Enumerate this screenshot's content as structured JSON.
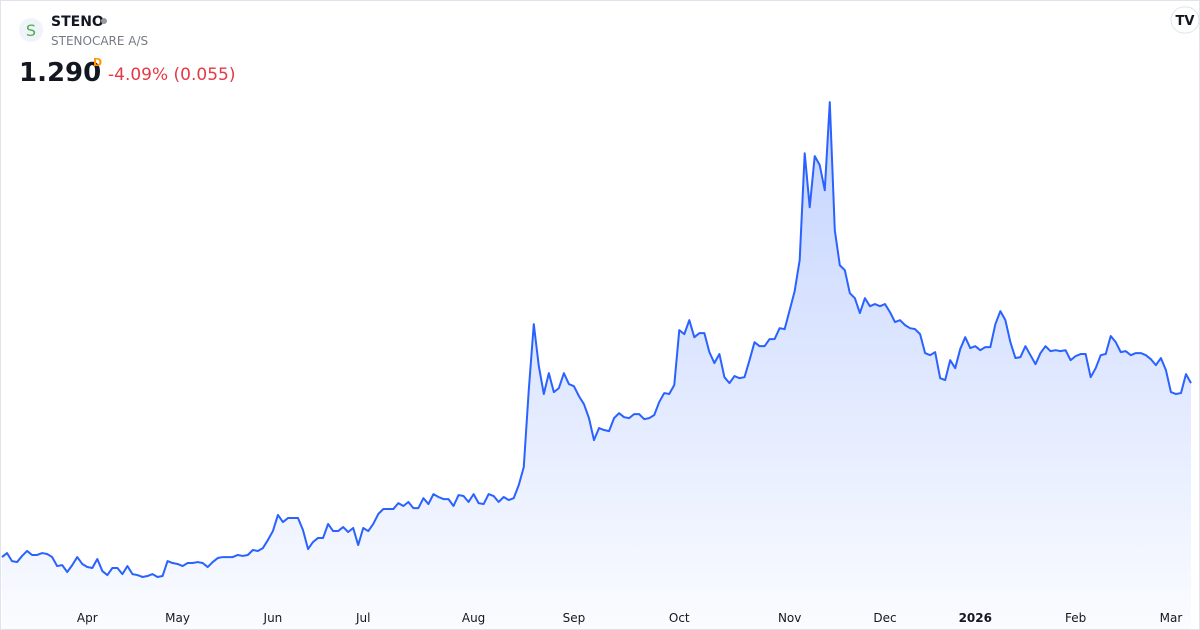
{
  "chart_data": {
    "type": "area",
    "symbol": "STENO",
    "name": "STENOCARE A/S",
    "price": "1.290",
    "interval": "D",
    "change": "-4.09% (0.055)",
    "color": "#2962ff",
    "values": [
      0.381,
      0.402,
      0.36,
      0.355,
      0.387,
      0.413,
      0.392,
      0.392,
      0.402,
      0.397,
      0.381,
      0.334,
      0.339,
      0.303,
      0.339,
      0.381,
      0.345,
      0.329,
      0.324,
      0.371,
      0.308,
      0.287,
      0.324,
      0.324,
      0.292,
      0.334,
      0.292,
      0.287,
      0.277,
      0.282,
      0.292,
      0.277,
      0.282,
      0.36,
      0.35,
      0.345,
      0.334,
      0.35,
      0.35,
      0.355,
      0.35,
      0.329,
      0.355,
      0.376,
      0.381,
      0.381,
      0.381,
      0.392,
      0.387,
      0.392,
      0.418,
      0.413,
      0.428,
      0.47,
      0.517,
      0.601,
      0.564,
      0.585,
      0.585,
      0.585,
      0.522,
      0.423,
      0.46,
      0.481,
      0.481,
      0.554,
      0.517,
      0.517,
      0.538,
      0.512,
      0.533,
      0.444,
      0.533,
      0.517,
      0.554,
      0.606,
      0.632,
      0.632,
      0.632,
      0.663,
      0.648,
      0.669,
      0.637,
      0.637,
      0.689,
      0.658,
      0.71,
      0.695,
      0.684,
      0.684,
      0.648,
      0.705,
      0.7,
      0.669,
      0.71,
      0.663,
      0.658,
      0.71,
      0.7,
      0.669,
      0.695,
      0.679,
      0.689,
      0.757,
      0.851,
      1.254,
      1.598,
      1.379,
      1.233,
      1.342,
      1.243,
      1.264,
      1.342,
      1.285,
      1.274,
      1.222,
      1.18,
      1.107,
      0.992,
      1.055,
      1.045,
      1.039,
      1.107,
      1.133,
      1.112,
      1.107,
      1.128,
      1.128,
      1.102,
      1.107,
      1.123,
      1.191,
      1.238,
      1.233,
      1.28,
      1.567,
      1.546,
      1.619,
      1.53,
      1.551,
      1.551,
      1.452,
      1.395,
      1.442,
      1.321,
      1.29,
      1.327,
      1.316,
      1.321,
      1.41,
      1.504,
      1.483,
      1.483,
      1.52,
      1.52,
      1.577,
      1.572,
      1.671,
      1.771,
      1.933,
      2.491,
      2.209,
      2.476,
      2.429,
      2.298,
      2.758,
      2.089,
      1.906,
      1.88,
      1.76,
      1.734,
      1.656,
      1.734,
      1.692,
      1.703,
      1.692,
      1.703,
      1.661,
      1.609,
      1.619,
      1.593,
      1.577,
      1.572,
      1.546,
      1.447,
      1.436,
      1.452,
      1.316,
      1.306,
      1.41,
      1.368,
      1.468,
      1.53,
      1.473,
      1.483,
      1.462,
      1.478,
      1.478,
      1.598,
      1.666,
      1.619,
      1.504,
      1.421,
      1.426,
      1.483,
      1.436,
      1.389,
      1.447,
      1.483,
      1.457,
      1.462,
      1.457,
      1.462,
      1.41,
      1.431,
      1.442,
      1.442,
      1.321,
      1.368,
      1.436,
      1.442,
      1.536,
      1.504,
      1.452,
      1.457,
      1.436,
      1.447,
      1.447,
      1.436,
      1.415,
      1.384,
      1.421,
      1.358,
      1.243,
      1.233,
      1.238,
      1.337,
      1.29
    ],
    "xlim": [
      0,
      237
    ],
    "xticks": [
      {
        "value": 17,
        "label": "Apr"
      },
      {
        "value": 35,
        "label": "May"
      },
      {
        "value": 54,
        "label": "Jun"
      },
      {
        "value": 72,
        "label": "Jul"
      },
      {
        "value": 94,
        "label": "Aug"
      },
      {
        "value": 114,
        "label": "Sep"
      },
      {
        "value": 135,
        "label": "Oct"
      },
      {
        "value": 157,
        "label": "Nov"
      },
      {
        "value": 176,
        "label": "Dec"
      },
      {
        "value": 194,
        "label": "2026"
      },
      {
        "value": 214,
        "label": "Feb"
      },
      {
        "value": 233,
        "label": "Mar"
      }
    ],
    "ylim": [
      0,
      2.9
    ]
  }
}
